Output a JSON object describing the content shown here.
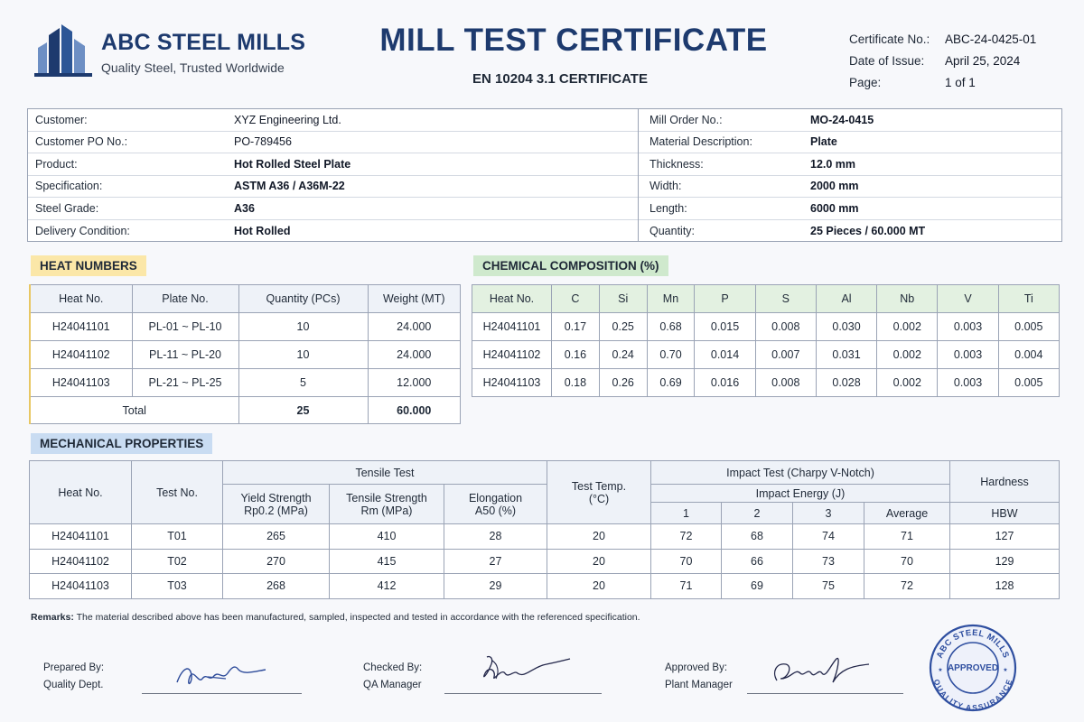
{
  "brand": {
    "name": "ABC STEEL MILLS",
    "tagline": "Quality Steel, Trusted Worldwide"
  },
  "header": {
    "title": "MILL TEST CERTIFICATE",
    "subtitle": "EN 10204 3.1 CERTIFICATE",
    "meta": [
      {
        "label": "Certificate No.:",
        "value": "ABC-24-0425-01"
      },
      {
        "label": "Date of Issue:",
        "value": "April 25, 2024"
      },
      {
        "label": "Page:",
        "value": "1 of 1"
      }
    ]
  },
  "info": {
    "left": [
      {
        "label": "Customer:",
        "value": "XYZ Engineering Ltd."
      },
      {
        "label": "Customer PO No.:",
        "value": "PO-789456"
      },
      {
        "label": "Product:",
        "value": "Hot Rolled Steel Plate"
      },
      {
        "label": "Specification:",
        "value": "ASTM A36 / A36M-22"
      },
      {
        "label": "Steel Grade:",
        "value": "A36"
      },
      {
        "label": "Delivery Condition:",
        "value": "Hot Rolled"
      }
    ],
    "right": [
      {
        "label": "Mill Order No.:",
        "value": "MO-24-0415"
      },
      {
        "label": "Material Description:",
        "value": "Plate"
      },
      {
        "label": "Thickness:",
        "value": "12.0 mm"
      },
      {
        "label": "Width:",
        "value": "2000 mm"
      },
      {
        "label": "Length:",
        "value": "6000 mm"
      },
      {
        "label": "Quantity:",
        "value": "25 Pieces / 60.000 MT"
      }
    ]
  },
  "heat_numbers": {
    "section_label": "HEAT NUMBERS",
    "headers": [
      "Heat No.",
      "Plate No.",
      "Quantity (PCs)",
      "Weight (MT)"
    ],
    "rows": [
      [
        "H24041101",
        "PL-01 ~ PL-10",
        "10",
        "24.000"
      ],
      [
        "H24041102",
        "PL-11 ~ PL-20",
        "10",
        "24.000"
      ],
      [
        "H24041103",
        "PL-21 ~ PL-25",
        "5",
        "12.000"
      ]
    ],
    "total": {
      "label": "Total",
      "quantity": "25",
      "weight": "60.000"
    }
  },
  "chemical": {
    "section_label": "CHEMICAL COMPOSITION (%)",
    "headers": [
      "Heat No.",
      "C",
      "Si",
      "Mn",
      "P",
      "S",
      "Al",
      "Nb",
      "V",
      "Ti"
    ],
    "rows": [
      [
        "H24041101",
        "0.17",
        "0.25",
        "0.68",
        "0.015",
        "0.008",
        "0.030",
        "0.002",
        "0.003",
        "0.005"
      ],
      [
        "H24041102",
        "0.16",
        "0.24",
        "0.70",
        "0.014",
        "0.007",
        "0.031",
        "0.002",
        "0.003",
        "0.004"
      ],
      [
        "H24041103",
        "0.18",
        "0.26",
        "0.69",
        "0.016",
        "0.008",
        "0.028",
        "0.002",
        "0.003",
        "0.005"
      ]
    ]
  },
  "mechanical": {
    "section_label": "MECHANICAL PROPERTIES",
    "h_heat": "Heat No.",
    "h_test": "Test No.",
    "h_tensile": "Tensile Test",
    "h_yield": "Yield Strength",
    "h_yield_unit": "Rp0.2 (MPa)",
    "h_ts": "Tensile Strength",
    "h_ts_unit": "Rm (MPa)",
    "h_elong": "Elongation",
    "h_elong_unit": "A50 (%)",
    "h_temp": "Test Temp.",
    "h_temp_unit": "(°C)",
    "h_impact": "Impact Test (Charpy V-Notch)",
    "h_energy": "Impact Energy (J)",
    "h_e1": "1",
    "h_e2": "2",
    "h_e3": "3",
    "h_avg": "Average",
    "h_hardness": "Hardness",
    "h_hbw": "HBW",
    "rows": [
      [
        "H24041101",
        "T01",
        "265",
        "410",
        "28",
        "20",
        "72",
        "68",
        "74",
        "71",
        "127"
      ],
      [
        "H24041102",
        "T02",
        "270",
        "415",
        "27",
        "20",
        "70",
        "66",
        "73",
        "70",
        "129"
      ],
      [
        "H24041103",
        "T03",
        "268",
        "412",
        "29",
        "20",
        "71",
        "69",
        "75",
        "72",
        "128"
      ]
    ]
  },
  "remarks": {
    "label": "Remarks:",
    "text": "The material described above has been manufactured, sampled, inspected and tested in accordance with the referenced specification."
  },
  "signatures": [
    {
      "title": "Prepared By:",
      "role": "Quality Dept."
    },
    {
      "title": "Checked By:",
      "role": "QA Manager"
    },
    {
      "title": "Approved By:",
      "role": "Plant Manager"
    }
  ],
  "seal": {
    "outer_top": "ABC STEEL MILLS",
    "outer_bottom": "QUALITY ASSURANCE",
    "center": "APPROVED"
  },
  "colors": {
    "brand": "#1d3a6e",
    "heat_label": "#fbe7a8",
    "chem_label": "#cfe9cd",
    "mech_label": "#c9dcf2",
    "seal": "#2f4fa0"
  }
}
